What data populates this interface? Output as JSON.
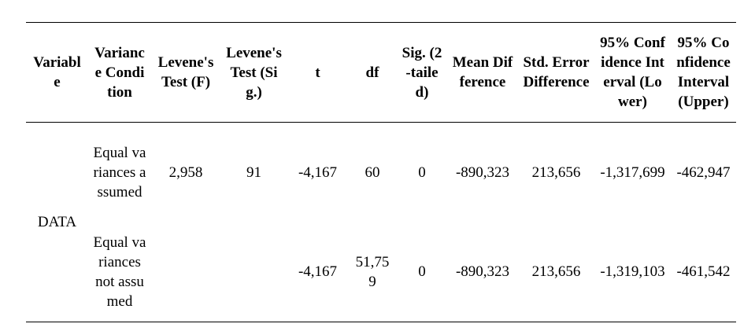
{
  "table": {
    "headers": [
      "Variable",
      "Variance Condition",
      "Levene's Test (F)",
      "Levene's Test (Sig.)",
      "t",
      "df",
      "Sig. (2-tailed)",
      "Mean Difference",
      "Std. Error Difference",
      "95% Confidence Interval (Lower)",
      "95% Confidence Interval (Upper)"
    ],
    "rows": [
      {
        "variable": "DATA",
        "condition": "Equal variances assumed",
        "levene_f": "2,958",
        "levene_sig": "91",
        "t": "-4,167",
        "df": "60",
        "sig": "0",
        "mean_diff": "-890,323",
        "se_diff": "213,656",
        "ci_lower": "-1,317,699",
        "ci_upper": "-462,947"
      },
      {
        "condition": "Equal variances not assumed",
        "t": "-4,167",
        "df": "51,759",
        "sig": "0",
        "mean_diff": "-890,323",
        "se_diff": "213,656",
        "ci_lower": "-1,319,103",
        "ci_upper": "-461,542"
      }
    ]
  }
}
